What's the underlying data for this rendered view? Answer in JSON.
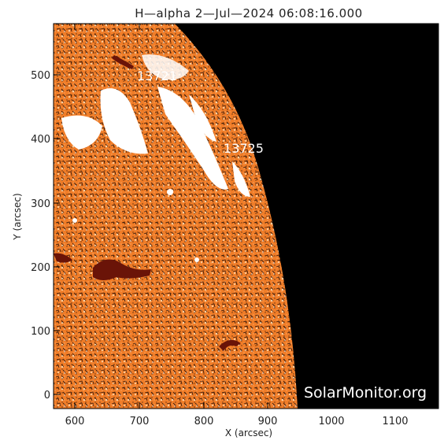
{
  "title": "H—alpha   2—Jul—2024  06:08:16.000",
  "axes": {
    "xlabel": "X (arcsec)",
    "ylabel": "Y (arcsec)",
    "x_ticks": [
      "600",
      "700",
      "800",
      "900",
      "1000",
      "1100"
    ],
    "y_ticks": [
      "0",
      "100",
      "200",
      "300",
      "400",
      "500"
    ]
  },
  "regions": [
    {
      "number": "13721"
    },
    {
      "number": "13725"
    }
  ],
  "watermark": "SolarMonitor.org",
  "colors": {
    "chromosphere": "#f07d28",
    "chromosphere_light": "#f8b070",
    "plage": "#ffffff",
    "filament": "#6a1408",
    "space": "#000000"
  }
}
